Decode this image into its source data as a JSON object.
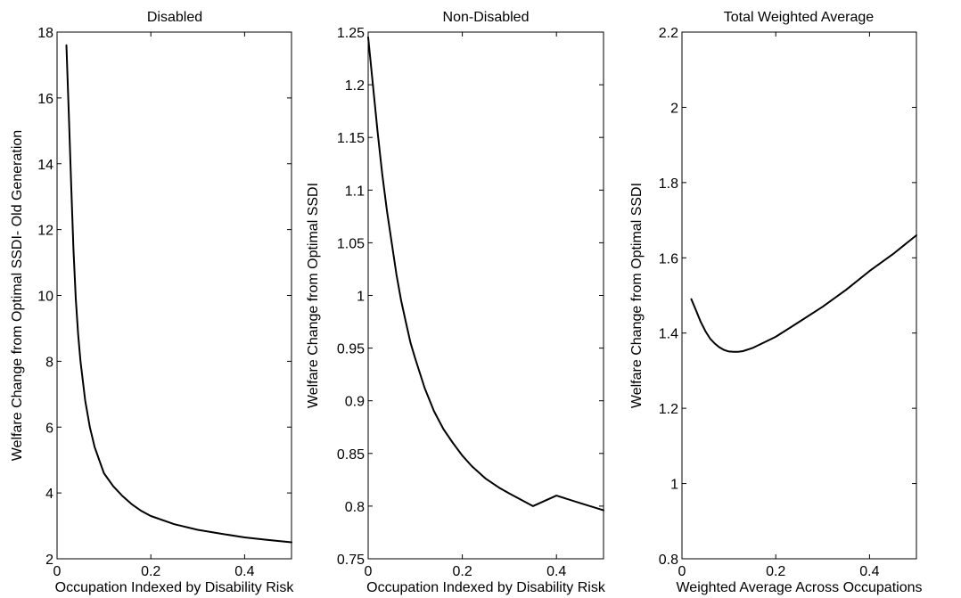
{
  "chart_data": [
    {
      "type": "line",
      "title": "Disabled",
      "xlabel": "Occupation Indexed by Disability Risk",
      "ylabel": "Welfare Change from Optimal SSDI- Old Generation",
      "xlim": [
        0,
        0.5
      ],
      "ylim": [
        2,
        18
      ],
      "xticks": [
        0,
        0.2,
        0.4
      ],
      "yticks": [
        2,
        4,
        6,
        8,
        10,
        12,
        14,
        16,
        18
      ],
      "xtick_labels": [
        "0",
        "0.2",
        "0.4"
      ],
      "ytick_labels": [
        "2",
        "4",
        "6",
        "8",
        "10",
        "12",
        "14",
        "16",
        "18"
      ],
      "grid": false,
      "series": [
        {
          "x": [
            0.02,
            0.025,
            0.03,
            0.035,
            0.04,
            0.045,
            0.05,
            0.06,
            0.07,
            0.08,
            0.09,
            0.1,
            0.12,
            0.14,
            0.16,
            0.18,
            0.2,
            0.25,
            0.3,
            0.35,
            0.4,
            0.45,
            0.5
          ],
          "y": [
            17.6,
            15.5,
            13.4,
            11.4,
            9.9,
            8.8,
            8.0,
            6.8,
            6.0,
            5.4,
            5.0,
            4.6,
            4.2,
            3.9,
            3.65,
            3.45,
            3.3,
            3.05,
            2.88,
            2.76,
            2.65,
            2.57,
            2.5
          ]
        }
      ]
    },
    {
      "type": "line",
      "title": "Non-Disabled",
      "xlabel": "Occupation Indexed by Disability Risk",
      "ylabel": "Welfare Change from Optimal SSDI",
      "xlim": [
        0,
        0.5
      ],
      "ylim": [
        0.75,
        1.25
      ],
      "xticks": [
        0,
        0.2,
        0.4
      ],
      "yticks": [
        0.75,
        0.8,
        0.85,
        0.9,
        0.95,
        1,
        1.05,
        1.1,
        1.15,
        1.2,
        1.25
      ],
      "xtick_labels": [
        "0",
        "0.2",
        "0.4"
      ],
      "ytick_labels": [
        "0.75",
        "0.8",
        "0.85",
        "0.9",
        "0.95",
        "1",
        "1.05",
        "1.1",
        "1.15",
        "1.2",
        "1.25"
      ],
      "grid": false,
      "series": [
        {
          "x": [
            0.0,
            0.01,
            0.02,
            0.03,
            0.04,
            0.05,
            0.06,
            0.07,
            0.08,
            0.09,
            0.1,
            0.12,
            0.14,
            0.16,
            0.18,
            0.2,
            0.22,
            0.25,
            0.28,
            0.3,
            0.35,
            0.4,
            0.45,
            0.5
          ],
          "y": [
            1.245,
            1.2,
            1.155,
            1.115,
            1.08,
            1.05,
            1.02,
            0.995,
            0.975,
            0.955,
            0.94,
            0.912,
            0.89,
            0.873,
            0.86,
            0.848,
            0.838,
            0.826,
            0.817,
            0.812,
            0.8,
            0.81,
            0.803,
            0.796
          ]
        }
      ]
    },
    {
      "type": "line",
      "title": "Total Weighted Average",
      "xlabel": "Weighted Average Across Occupations",
      "ylabel": "Welfare Change from Optimal SSDI",
      "xlim": [
        0,
        0.5
      ],
      "ylim": [
        0.8,
        2.2
      ],
      "xticks": [
        0,
        0.2,
        0.4
      ],
      "yticks": [
        0.8,
        1,
        1.2,
        1.4,
        1.6,
        1.8,
        2,
        2.2
      ],
      "xtick_labels": [
        "0",
        "0.2",
        "0.4"
      ],
      "ytick_labels": [
        "0.8",
        "1",
        "1.2",
        "1.4",
        "1.6",
        "1.8",
        "2",
        "2.2"
      ],
      "grid": false,
      "series": [
        {
          "x": [
            0.02,
            0.03,
            0.04,
            0.05,
            0.06,
            0.07,
            0.08,
            0.09,
            0.1,
            0.11,
            0.12,
            0.13,
            0.15,
            0.18,
            0.2,
            0.25,
            0.3,
            0.35,
            0.4,
            0.45,
            0.5
          ],
          "y": [
            1.49,
            1.46,
            1.43,
            1.405,
            1.385,
            1.372,
            1.362,
            1.355,
            1.351,
            1.35,
            1.35,
            1.352,
            1.36,
            1.378,
            1.39,
            1.43,
            1.47,
            1.515,
            1.565,
            1.61,
            1.66
          ]
        }
      ]
    }
  ]
}
